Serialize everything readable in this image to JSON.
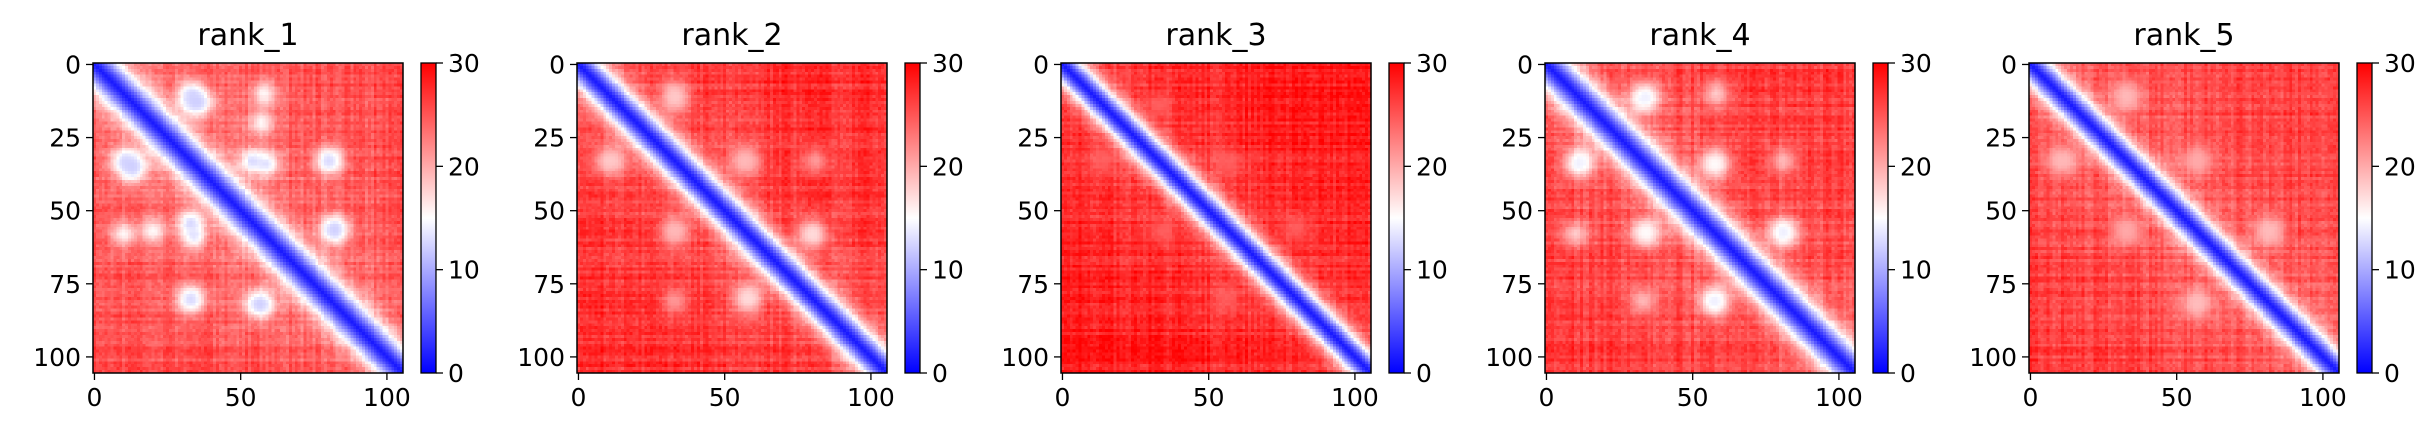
{
  "chart_data": [
    {
      "type": "heatmap",
      "title": "rank_1",
      "matrix_size": 106,
      "x_ticks": [
        0,
        50,
        100
      ],
      "y_ticks": [
        0,
        25,
        50,
        75,
        100
      ],
      "colormap": {
        "name": "bwr",
        "min": 0,
        "max": 30,
        "colors": [
          "#0000ff",
          "#ffffff",
          "#ff0000"
        ]
      },
      "colorbar_ticks": [
        0,
        10,
        20,
        30
      ],
      "diagonal_band_width": 10,
      "background_value": 26,
      "blobs": [
        {
          "x": 34,
          "y": 13,
          "value": 12
        },
        {
          "x": 57,
          "y": 20,
          "value": 14
        },
        {
          "x": 10,
          "y": 33,
          "value": 12
        },
        {
          "x": 13,
          "y": 36,
          "value": 12
        },
        {
          "x": 81,
          "y": 33,
          "value": 16
        },
        {
          "x": 33,
          "y": 54,
          "value": 11
        },
        {
          "x": 59,
          "y": 34,
          "value": 12
        },
        {
          "x": 82,
          "y": 56,
          "value": 12
        },
        {
          "x": 10,
          "y": 58,
          "value": 14
        },
        {
          "x": 33,
          "y": 80,
          "value": 12
        },
        {
          "x": 57,
          "y": 82,
          "value": 12
        }
      ]
    },
    {
      "type": "heatmap",
      "title": "rank_2",
      "matrix_size": 106,
      "x_ticks": [
        0,
        50,
        100
      ],
      "y_ticks": [
        0,
        25,
        50,
        75,
        100
      ],
      "colormap": {
        "name": "bwr",
        "min": 0,
        "max": 30,
        "colors": [
          "#0000ff",
          "#ffffff",
          "#ff0000"
        ]
      },
      "colorbar_ticks": [
        0,
        10,
        20,
        30
      ],
      "diagonal_band_width": 9,
      "background_value": 28,
      "blobs": [
        {
          "x": 33,
          "y": 12,
          "value": 18
        },
        {
          "x": 10,
          "y": 33,
          "value": 18
        },
        {
          "x": 57,
          "y": 33,
          "value": 19
        },
        {
          "x": 81,
          "y": 33,
          "value": 20
        },
        {
          "x": 33,
          "y": 57,
          "value": 19
        },
        {
          "x": 80,
          "y": 58,
          "value": 17
        },
        {
          "x": 58,
          "y": 80,
          "value": 17
        }
      ]
    },
    {
      "type": "heatmap",
      "title": "rank_3",
      "matrix_size": 106,
      "x_ticks": [
        0,
        50,
        100
      ],
      "y_ticks": [
        0,
        25,
        50,
        75,
        100
      ],
      "colormap": {
        "name": "bwr",
        "min": 0,
        "max": 30,
        "colors": [
          "#0000ff",
          "#ffffff",
          "#ff0000"
        ]
      },
      "colorbar_ticks": [
        0,
        10,
        20,
        30
      ],
      "diagonal_band_width": 8,
      "background_value": 29,
      "blobs": [
        {
          "x": 33,
          "y": 14,
          "value": 24
        },
        {
          "x": 57,
          "y": 34,
          "value": 24
        },
        {
          "x": 80,
          "y": 56,
          "value": 24
        }
      ]
    },
    {
      "type": "heatmap",
      "title": "rank_4",
      "matrix_size": 106,
      "x_ticks": [
        0,
        50,
        100
      ],
      "y_ticks": [
        0,
        25,
        50,
        75,
        100
      ],
      "colormap": {
        "name": "bwr",
        "min": 0,
        "max": 30,
        "colors": [
          "#0000ff",
          "#ffffff",
          "#ff0000"
        ]
      },
      "colorbar_ticks": [
        0,
        10,
        20,
        30
      ],
      "diagonal_band_width": 10,
      "background_value": 27,
      "blobs": [
        {
          "x": 34,
          "y": 11,
          "value": 13
        },
        {
          "x": 12,
          "y": 33,
          "value": 14
        },
        {
          "x": 58,
          "y": 34,
          "value": 15
        },
        {
          "x": 81,
          "y": 33,
          "value": 18
        },
        {
          "x": 34,
          "y": 57,
          "value": 15
        },
        {
          "x": 81,
          "y": 57,
          "value": 13
        },
        {
          "x": 58,
          "y": 81,
          "value": 14
        },
        {
          "x": 10,
          "y": 58,
          "value": 17
        }
      ]
    },
    {
      "type": "heatmap",
      "title": "rank_5",
      "matrix_size": 106,
      "x_ticks": [
        0,
        50,
        100
      ],
      "y_ticks": [
        0,
        25,
        50,
        75,
        100
      ],
      "colormap": {
        "name": "bwr",
        "min": 0,
        "max": 30,
        "colors": [
          "#0000ff",
          "#ffffff",
          "#ff0000"
        ]
      },
      "colorbar_ticks": [
        0,
        10,
        20,
        30
      ],
      "diagonal_band_width": 8,
      "background_value": 27,
      "blobs": [
        {
          "x": 33,
          "y": 12,
          "value": 19
        },
        {
          "x": 10,
          "y": 33,
          "value": 19
        },
        {
          "x": 57,
          "y": 33,
          "value": 20
        },
        {
          "x": 33,
          "y": 57,
          "value": 20
        },
        {
          "x": 82,
          "y": 57,
          "value": 18
        },
        {
          "x": 57,
          "y": 81,
          "value": 19
        }
      ]
    }
  ]
}
